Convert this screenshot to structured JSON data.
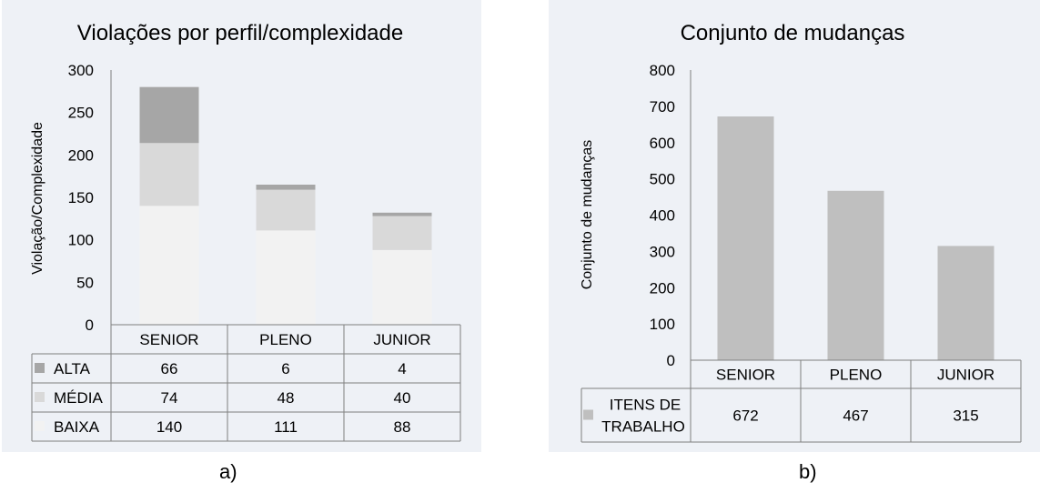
{
  "chart_data": [
    {
      "type": "bar",
      "stacked": true,
      "title": "Violações por perfil/complexidade",
      "ylabel": "Violação/Complexidade",
      "xlabel": "",
      "categories": [
        "SENIOR",
        "PLENO",
        "JUNIOR"
      ],
      "ylim": [
        0,
        300
      ],
      "yticks": [
        0,
        50,
        100,
        150,
        200,
        250,
        300
      ],
      "series": [
        {
          "name": "BAIXA",
          "values": [
            140,
            111,
            88
          ],
          "color": "#f2f2f2"
        },
        {
          "name": "MÉDIA",
          "values": [
            74,
            48,
            40
          ],
          "color": "#d9d9d9"
        },
        {
          "name": "ALTA",
          "values": [
            66,
            6,
            4
          ],
          "color": "#a6a6a6"
        }
      ],
      "data_table": true,
      "grid": false
    },
    {
      "type": "bar",
      "title": "Conjunto de mudanças",
      "ylabel": "Conjunto de mudanças",
      "xlabel": "",
      "categories": [
        "SENIOR",
        "PLENO",
        "JUNIOR"
      ],
      "ylim": [
        0,
        800
      ],
      "yticks": [
        0,
        100,
        200,
        300,
        400,
        500,
        600,
        700,
        800
      ],
      "series": [
        {
          "name": "ITENS DE TRABALHO",
          "values": [
            672,
            467,
            315
          ],
          "color": "#bfbfbf"
        }
      ],
      "data_table": true,
      "grid": false
    }
  ],
  "captions": {
    "a": "a)",
    "b": "b)"
  }
}
